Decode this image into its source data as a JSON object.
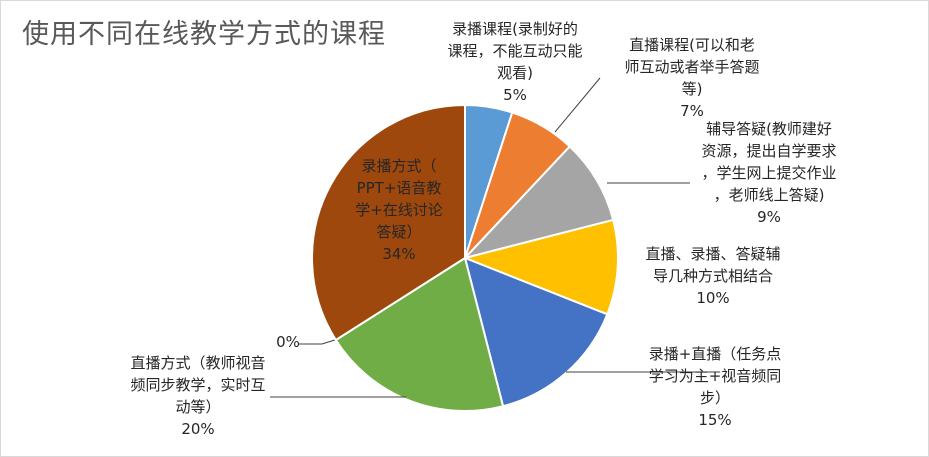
{
  "chart_data": {
    "type": "pie",
    "title": "使用不同在线教学方式的课程",
    "slices": [
      {
        "label": "录播课程(录制好的课程，不能互动只能观看)",
        "lines": [
          "录播课程(录制好的",
          "课程，不能互动只能",
          "观看)"
        ],
        "value": 5,
        "value_label": "5%",
        "color": "#5B9BD5"
      },
      {
        "label": "直播课程(可以和老师互动或者举手答题等)",
        "lines": [
          "直播课程(可以和老",
          "师互动或者举手答题",
          "等)"
        ],
        "value": 7,
        "value_label": "7%",
        "color": "#ED7D31"
      },
      {
        "label": "辅导答疑(教师建好资源，提出自学要求，学生网上提交作业，老师线上答疑)",
        "lines": [
          "辅导答疑(教师建好",
          "资源，提出自学要求",
          "，学生网上提交作业",
          "，老师线上答疑)"
        ],
        "value": 9,
        "value_label": "9%",
        "color": "#A5A5A5"
      },
      {
        "label": "直播、录播、答疑辅导几种方式相结合",
        "lines": [
          "直播、录播、答疑辅",
          "导几种方式相结合"
        ],
        "value": 10,
        "value_label": "10%",
        "color": "#FFC000"
      },
      {
        "label": "录播+直播（任务点学习为主+视音频同步）",
        "lines": [
          "录播+直播（任务点",
          "学习为主+视音频同",
          "步）"
        ],
        "value": 15,
        "value_label": "15%",
        "color": "#4472C4"
      },
      {
        "label": "直播方式（教师视音频同步教学，实时互动等）",
        "lines": [
          "直播方式（教师视音",
          "频同步教学，实时互",
          "动等）"
        ],
        "value": 20,
        "value_label": "20%",
        "color": "#70AD47"
      },
      {
        "label": "",
        "lines": [],
        "value": 0,
        "value_label": "0%",
        "color": "#264478"
      },
      {
        "label": "录播方式（PPT+语音教学+在线讨论答疑）",
        "lines": [
          "录播方式（",
          "PPT+语音教",
          "学+在线讨论",
          "答疑）"
        ],
        "value": 34,
        "value_label": "34%",
        "color": "#9E480E"
      }
    ],
    "legend": "none"
  }
}
